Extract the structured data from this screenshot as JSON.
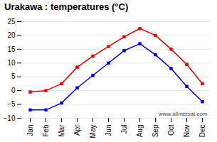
{
  "chart_data": {
    "type": "line",
    "title": "Urakawa : temperatures (°C)",
    "categories": [
      "Jan",
      "Feb",
      "Mar",
      "Apr",
      "May",
      "Jun",
      "Jul",
      "Aug",
      "Sep",
      "Oct",
      "Nov",
      "Dec"
    ],
    "series": [
      {
        "color": "#dd0000",
        "marker": "square",
        "values": [
          -0.5,
          0.0,
          2.5,
          8.5,
          12.5,
          16.0,
          19.5,
          22.5,
          20.0,
          15.0,
          9.5,
          2.5
        ]
      },
      {
        "color": "#0000cc",
        "marker": "square",
        "values": [
          -7.0,
          -7.0,
          -4.5,
          1.0,
          5.5,
          10.0,
          14.5,
          17.0,
          13.0,
          8.0,
          1.5,
          -4.0
        ]
      }
    ],
    "ylim": [
      -10,
      25
    ],
    "yticks": [
      -10,
      -5,
      0,
      5,
      10,
      15,
      20,
      25
    ],
    "grid": true,
    "annotation": "www.allmetsat.com"
  }
}
